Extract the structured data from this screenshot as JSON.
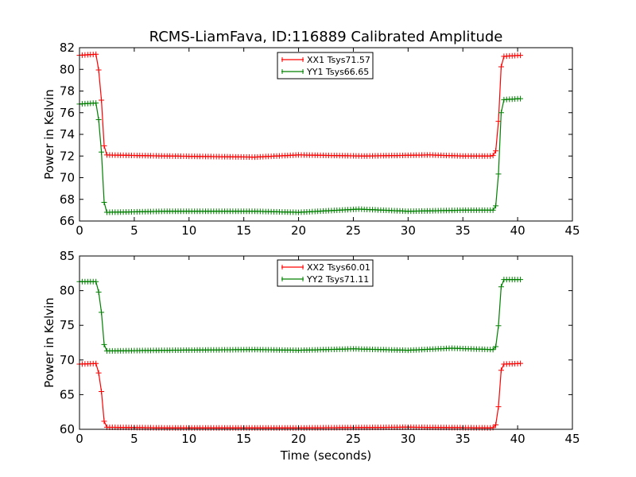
{
  "title": "RCMS-LiamFava, ID:116889 Calibrated Amplitude",
  "chart_data": [
    {
      "type": "line",
      "title": "RCMS-LiamFava, ID:116889 Calibrated Amplitude",
      "xlabel": "",
      "ylabel": "Power in Kelvin",
      "xlim": [
        0,
        45
      ],
      "ylim": [
        66,
        82
      ],
      "xticks": [
        "0",
        "5",
        "10",
        "15",
        "20",
        "25",
        "30",
        "35",
        "40",
        "45"
      ],
      "yticks": [
        "66",
        "68",
        "70",
        "72",
        "74",
        "76",
        "78",
        "80",
        "82"
      ],
      "legend_position": "upper-center",
      "series": [
        {
          "name": "XX1 Tsys71.57",
          "color": "#ff0000",
          "profile": [
            [
              0.0,
              81.3
            ],
            [
              1.6,
              81.4
            ],
            [
              1.95,
              78.0
            ],
            [
              2.3,
              72.1
            ],
            [
              8,
              72.0
            ],
            [
              16,
              71.9
            ],
            [
              20,
              72.1
            ],
            [
              26,
              72.0
            ],
            [
              32,
              72.1
            ],
            [
              35,
              72.0
            ],
            [
              37.6,
              72.0
            ],
            [
              37.95,
              72.1
            ],
            [
              38.2,
              74.0
            ],
            [
              38.45,
              80.0
            ],
            [
              38.7,
              81.2
            ],
            [
              40.3,
              81.3
            ]
          ]
        },
        {
          "name": "YY1 Tsys66.65",
          "color": "#008000",
          "profile": [
            [
              0.0,
              76.8
            ],
            [
              1.6,
              76.9
            ],
            [
              1.95,
              73.3
            ],
            [
              2.3,
              66.8
            ],
            [
              8,
              66.9
            ],
            [
              16,
              66.9
            ],
            [
              20,
              66.8
            ],
            [
              25.5,
              67.1
            ],
            [
              30,
              66.9
            ],
            [
              35,
              67.0
            ],
            [
              37.6,
              67.0
            ],
            [
              37.95,
              67.0
            ],
            [
              38.2,
              69.0
            ],
            [
              38.45,
              75.7
            ],
            [
              38.7,
              77.2
            ],
            [
              40.3,
              77.3
            ]
          ]
        }
      ]
    },
    {
      "type": "line",
      "title": "",
      "xlabel": "Time (seconds)",
      "ylabel": "Power in Kelvin",
      "xlim": [
        0,
        45
      ],
      "ylim": [
        60,
        85
      ],
      "xticks": [
        "0",
        "5",
        "10",
        "15",
        "20",
        "25",
        "30",
        "35",
        "40",
        "45"
      ],
      "yticks": [
        "60",
        "65",
        "70",
        "75",
        "80",
        "85"
      ],
      "legend_position": "upper-center",
      "series": [
        {
          "name": "XX2 Tsys60.01",
          "color": "#ff0000",
          "profile": [
            [
              0.0,
              69.4
            ],
            [
              1.6,
              69.5
            ],
            [
              1.95,
              66.3
            ],
            [
              2.3,
              60.3
            ],
            [
              8,
              60.2
            ],
            [
              20,
              60.2
            ],
            [
              30,
              60.3
            ],
            [
              37.6,
              60.2
            ],
            [
              37.95,
              60.3
            ],
            [
              38.2,
              62.0
            ],
            [
              38.45,
              68.3
            ],
            [
              38.7,
              69.4
            ],
            [
              40.3,
              69.5
            ]
          ]
        },
        {
          "name": "YY2 Tsys71.11",
          "color": "#008000",
          "profile": [
            [
              0.0,
              81.3
            ],
            [
              1.6,
              81.3
            ],
            [
              1.95,
              77.8
            ],
            [
              2.3,
              71.3
            ],
            [
              8,
              71.4
            ],
            [
              16,
              71.5
            ],
            [
              20,
              71.4
            ],
            [
              25,
              71.6
            ],
            [
              30,
              71.4
            ],
            [
              34,
              71.7
            ],
            [
              37.6,
              71.5
            ],
            [
              37.95,
              71.5
            ],
            [
              38.2,
              73.6
            ],
            [
              38.45,
              80.3
            ],
            [
              38.7,
              81.6
            ],
            [
              40.3,
              81.6
            ]
          ]
        }
      ]
    }
  ]
}
